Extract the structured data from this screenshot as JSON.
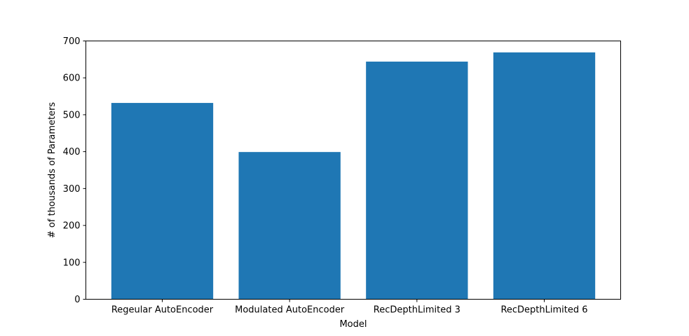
{
  "chart_data": {
    "type": "bar",
    "title": "",
    "xlabel": "Model",
    "ylabel": "# of thousands of Parameters",
    "categories": [
      "Regeular AutoEncoder",
      "Modulated AutoEncoder",
      "RecDepthLimited 3",
      "RecDepthLimited 6"
    ],
    "values": [
      532,
      399,
      644,
      669
    ],
    "ylim": [
      0,
      700
    ],
    "yticks": [
      0,
      100,
      200,
      300,
      400,
      500,
      600,
      700
    ],
    "grid": false,
    "bar_color": "#1f77b4"
  }
}
